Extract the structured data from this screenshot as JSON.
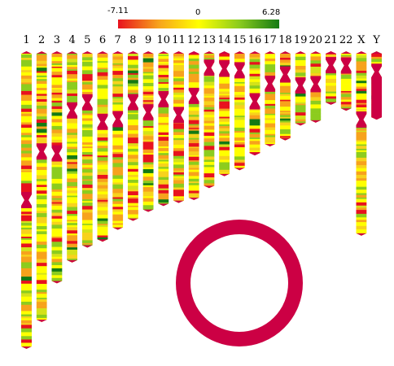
{
  "color_scale": {
    "min_label": "-7.11",
    "mid_label": "0",
    "max_label": "6.28",
    "min": -7.11,
    "max": 6.28,
    "colors": [
      "#e8121e",
      "#f7a21c",
      "#ffff00",
      "#8ccc1e",
      "#147a14"
    ]
  },
  "centromere_color": "#cc0044",
  "chromosomes": [
    {
      "label": "1",
      "length": 1.0,
      "centromere": 0.5
    },
    {
      "label": "2",
      "length": 0.91,
      "centromere": 0.37
    },
    {
      "label": "3",
      "length": 0.78,
      "centromere": 0.44
    },
    {
      "label": "4",
      "length": 0.71,
      "centromere": 0.28
    },
    {
      "label": "5",
      "length": 0.66,
      "centromere": 0.26
    },
    {
      "label": "6",
      "length": 0.64,
      "centromere": 0.37
    },
    {
      "label": "7",
      "length": 0.6,
      "centromere": 0.38
    },
    {
      "label": "8",
      "length": 0.57,
      "centromere": 0.3
    },
    {
      "label": "9",
      "length": 0.54,
      "centromere": 0.38
    },
    {
      "label": "10",
      "length": 0.52,
      "centromere": 0.31
    },
    {
      "label": "11",
      "length": 0.51,
      "centromere": 0.42
    },
    {
      "label": "12",
      "length": 0.5,
      "centromere": 0.3
    },
    {
      "label": "13",
      "length": 0.46,
      "centromere": 0.12
    },
    {
      "label": "14",
      "length": 0.42,
      "centromere": 0.14
    },
    {
      "label": "15",
      "length": 0.4,
      "centromere": 0.16
    },
    {
      "label": "16",
      "length": 0.35,
      "centromere": 0.48
    },
    {
      "label": "17",
      "length": 0.32,
      "centromere": 0.34
    },
    {
      "label": "18",
      "length": 0.3,
      "centromere": 0.26
    },
    {
      "label": "19",
      "length": 0.25,
      "centromere": 0.46
    },
    {
      "label": "20",
      "length": 0.24,
      "centromere": 0.46
    },
    {
      "label": "21",
      "length": 0.18,
      "centromere": 0.26
    },
    {
      "label": "22",
      "length": 0.2,
      "centromere": 0.24
    },
    {
      "label": "X",
      "length": 0.62,
      "centromere": 0.37
    },
    {
      "label": "Y",
      "length": 0.23,
      "centromere": 0.3
    }
  ],
  "ring": {
    "color": "#cc0044"
  }
}
